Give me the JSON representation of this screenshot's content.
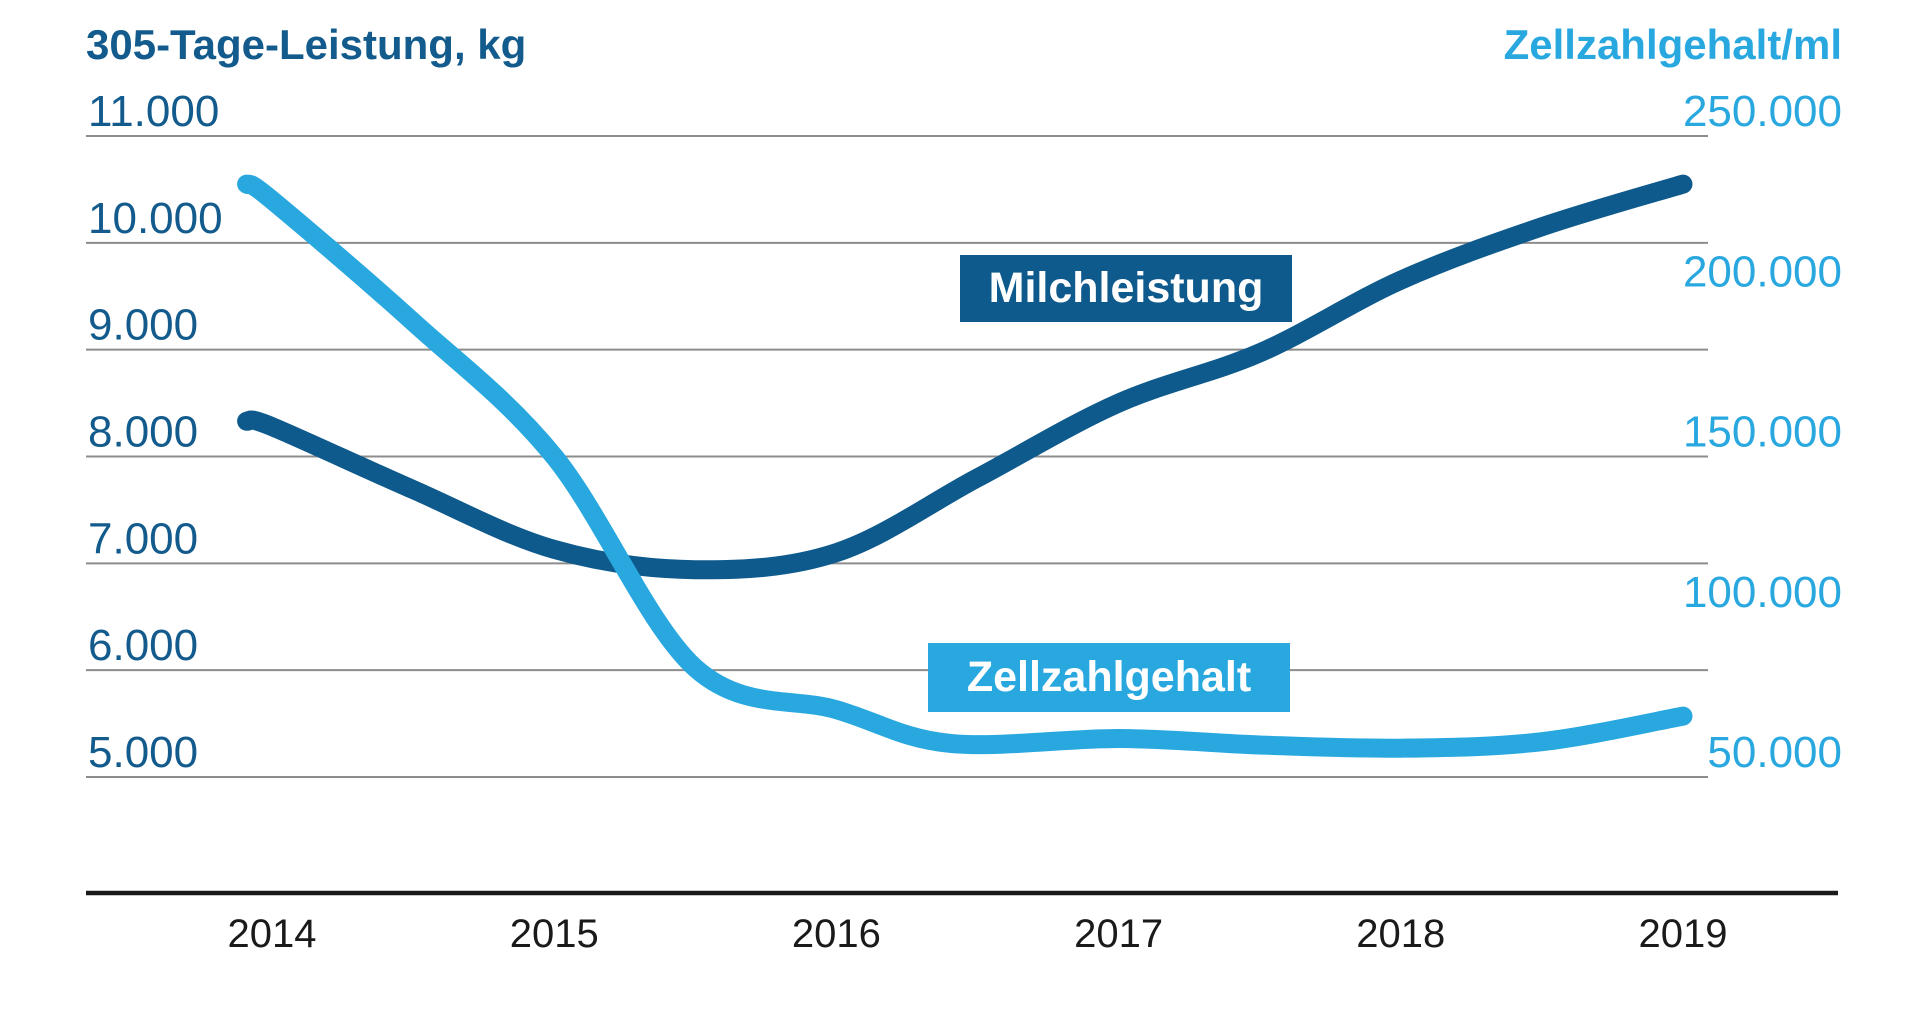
{
  "header": {
    "left_axis_title": "305-Tage-Leistung, kg",
    "right_axis_title": "Zellzahlgehalt/ml"
  },
  "colors": {
    "milk_line_dark_blue": "#0E5A8C",
    "cell_line_light_blue": "#29A8E0",
    "left_axis_text": "#135B8C",
    "right_axis_text": "#29A8E0",
    "gridline_gray": "#8C8C8C",
    "axis_black": "#1A1A1A",
    "year_label_black": "#1A1A1A",
    "background": "#FFFFFF",
    "label_box_text": "#FFFFFF"
  },
  "chart_data": {
    "type": "line",
    "title": "",
    "x_axis": {
      "tick_labels": [
        "2014",
        "2015",
        "2016",
        "2017",
        "2018",
        "2019"
      ],
      "tick_values": [
        2014,
        2015,
        2016,
        2017,
        2018,
        2019
      ],
      "range": [
        2013.85,
        2019.1
      ],
      "baseline_visible": true
    },
    "left_axis": {
      "title": "305-Tage-Leistung, kg",
      "unit": "kg",
      "tick_labels": [
        "11.000",
        "10.000",
        "9.000",
        "8.000",
        "7.000",
        "6.000",
        "5.000"
      ],
      "tick_values": [
        11000,
        10000,
        9000,
        8000,
        7000,
        6000,
        5000
      ],
      "range": [
        5000,
        11000
      ],
      "gridlines": true
    },
    "right_axis": {
      "title": "Zellzahlgehalt/ml",
      "unit": "cells/ml",
      "tick_labels": [
        "250.000",
        "200.000",
        "150.000",
        "100.000",
        "50.000"
      ],
      "tick_values": [
        250000,
        200000,
        150000,
        100000,
        50000
      ],
      "range": [
        50000,
        250000
      ],
      "gridlines": false
    },
    "legend_position": "inline-boxes-on-plot",
    "series": [
      {
        "name": "Milchleistung",
        "axis": "left",
        "color": "#0E5A8C",
        "points": [
          [
            2013.91,
            8330
          ],
          [
            2014.0,
            8280
          ],
          [
            2014.5,
            7690
          ],
          [
            2015.0,
            7130
          ],
          [
            2015.5,
            6940
          ],
          [
            2016.0,
            7100
          ],
          [
            2016.5,
            7800
          ],
          [
            2017.0,
            8500
          ],
          [
            2017.5,
            8970
          ],
          [
            2018.0,
            9650
          ],
          [
            2018.5,
            10150
          ],
          [
            2019.0,
            10550
          ]
        ]
      },
      {
        "name": "Zellzahlgehalt",
        "axis": "right",
        "color": "#29A8E0",
        "points": [
          [
            2013.91,
            235000
          ],
          [
            2014.0,
            230000
          ],
          [
            2014.5,
            192000
          ],
          [
            2015.0,
            150000
          ],
          [
            2015.5,
            84000
          ],
          [
            2016.0,
            71000
          ],
          [
            2016.4,
            60500
          ],
          [
            2017.0,
            62000
          ],
          [
            2017.5,
            60000
          ],
          [
            2018.0,
            59000
          ],
          [
            2018.5,
            61000
          ],
          [
            2019.0,
            69000
          ]
        ]
      }
    ]
  },
  "series_labels": {
    "milk": "Milchleistung",
    "cell": "Zellzahlgehalt"
  }
}
